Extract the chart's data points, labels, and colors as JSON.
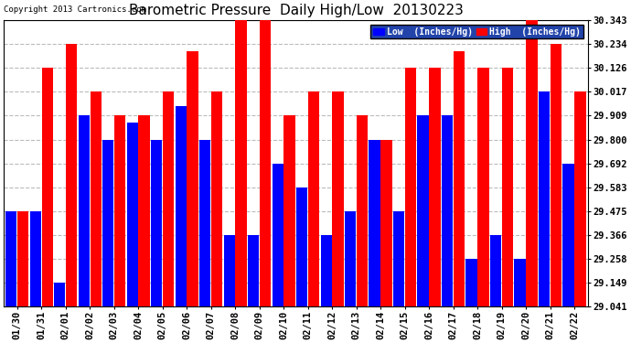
{
  "title": "Barometric Pressure  Daily High/Low  20130223",
  "copyright": "Copyright 2013 Cartronics.com",
  "dates": [
    "01/30",
    "01/31",
    "02/01",
    "02/02",
    "02/03",
    "02/04",
    "02/05",
    "02/06",
    "02/07",
    "02/08",
    "02/09",
    "02/10",
    "02/11",
    "02/12",
    "02/13",
    "02/14",
    "02/15",
    "02/16",
    "02/17",
    "02/18",
    "02/19",
    "02/20",
    "02/21",
    "02/22"
  ],
  "low_values": [
    29.475,
    29.475,
    29.149,
    29.909,
    29.8,
    29.875,
    29.8,
    29.95,
    29.8,
    29.366,
    29.366,
    29.692,
    29.583,
    29.366,
    29.475,
    29.8,
    29.475,
    29.909,
    29.909,
    29.258,
    29.366,
    29.258,
    30.017,
    29.692
  ],
  "high_values": [
    29.475,
    30.126,
    30.234,
    30.017,
    29.909,
    29.909,
    30.017,
    30.2,
    30.017,
    30.343,
    30.343,
    29.909,
    30.017,
    30.017,
    29.909,
    29.8,
    30.126,
    30.126,
    30.2,
    30.126,
    30.126,
    30.343,
    30.234,
    30.017
  ],
  "ylim_min": 29.041,
  "ylim_max": 30.343,
  "yticks": [
    29.041,
    29.149,
    29.258,
    29.366,
    29.475,
    29.583,
    29.692,
    29.8,
    29.909,
    30.017,
    30.126,
    30.234,
    30.343
  ],
  "low_color": "#0000ff",
  "high_color": "#ff0000",
  "bg_color": "#ffffff",
  "grid_color": "#bbbbbb",
  "title_fontsize": 11,
  "legend_low_label": "Low  (Inches/Hg)",
  "legend_high_label": "High  (Inches/Hg)",
  "legend_bg_color": "#2244aa"
}
